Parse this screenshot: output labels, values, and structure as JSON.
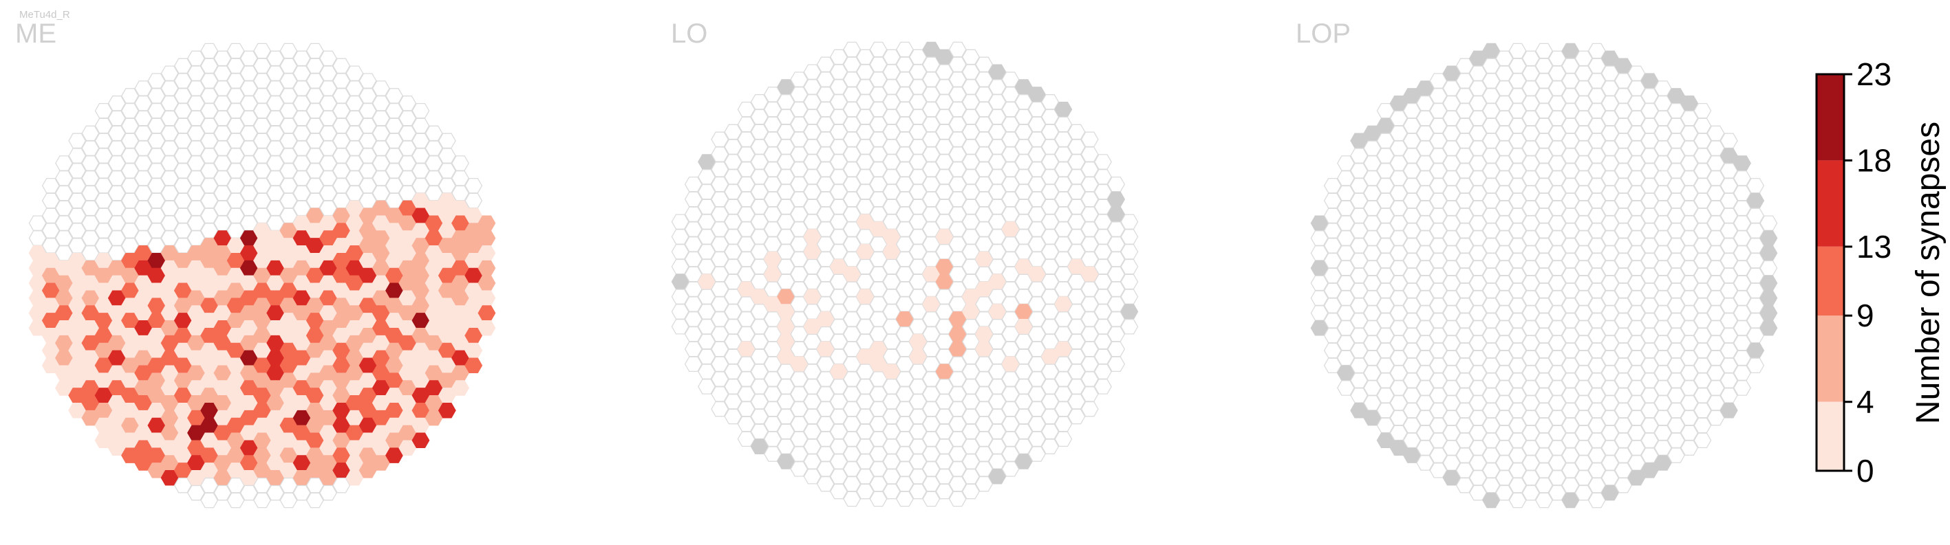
{
  "cell_type": "MeTu4d_R",
  "colors": {
    "empty_stroke": "#dcdcdc",
    "outside_fill": "#cccccc",
    "bins": [
      "#fde5dc",
      "#f9b19a",
      "#f56b52",
      "#d92a25",
      "#a11218"
    ]
  },
  "chart_data": {
    "type": "heatmap",
    "subtype": "hexagonal-column-map",
    "panels": [
      {
        "name": "ME",
        "label": "ME"
      },
      {
        "name": "LO",
        "label": "LO"
      },
      {
        "name": "LOP",
        "label": "LOP"
      }
    ],
    "colorbar": {
      "title": "Number of synapses",
      "ticks": [
        "0",
        "4",
        "9",
        "13",
        "18",
        "23"
      ],
      "boundaries": [
        0,
        4,
        9,
        13,
        18,
        23
      ],
      "min": 0,
      "max": 23
    }
  }
}
